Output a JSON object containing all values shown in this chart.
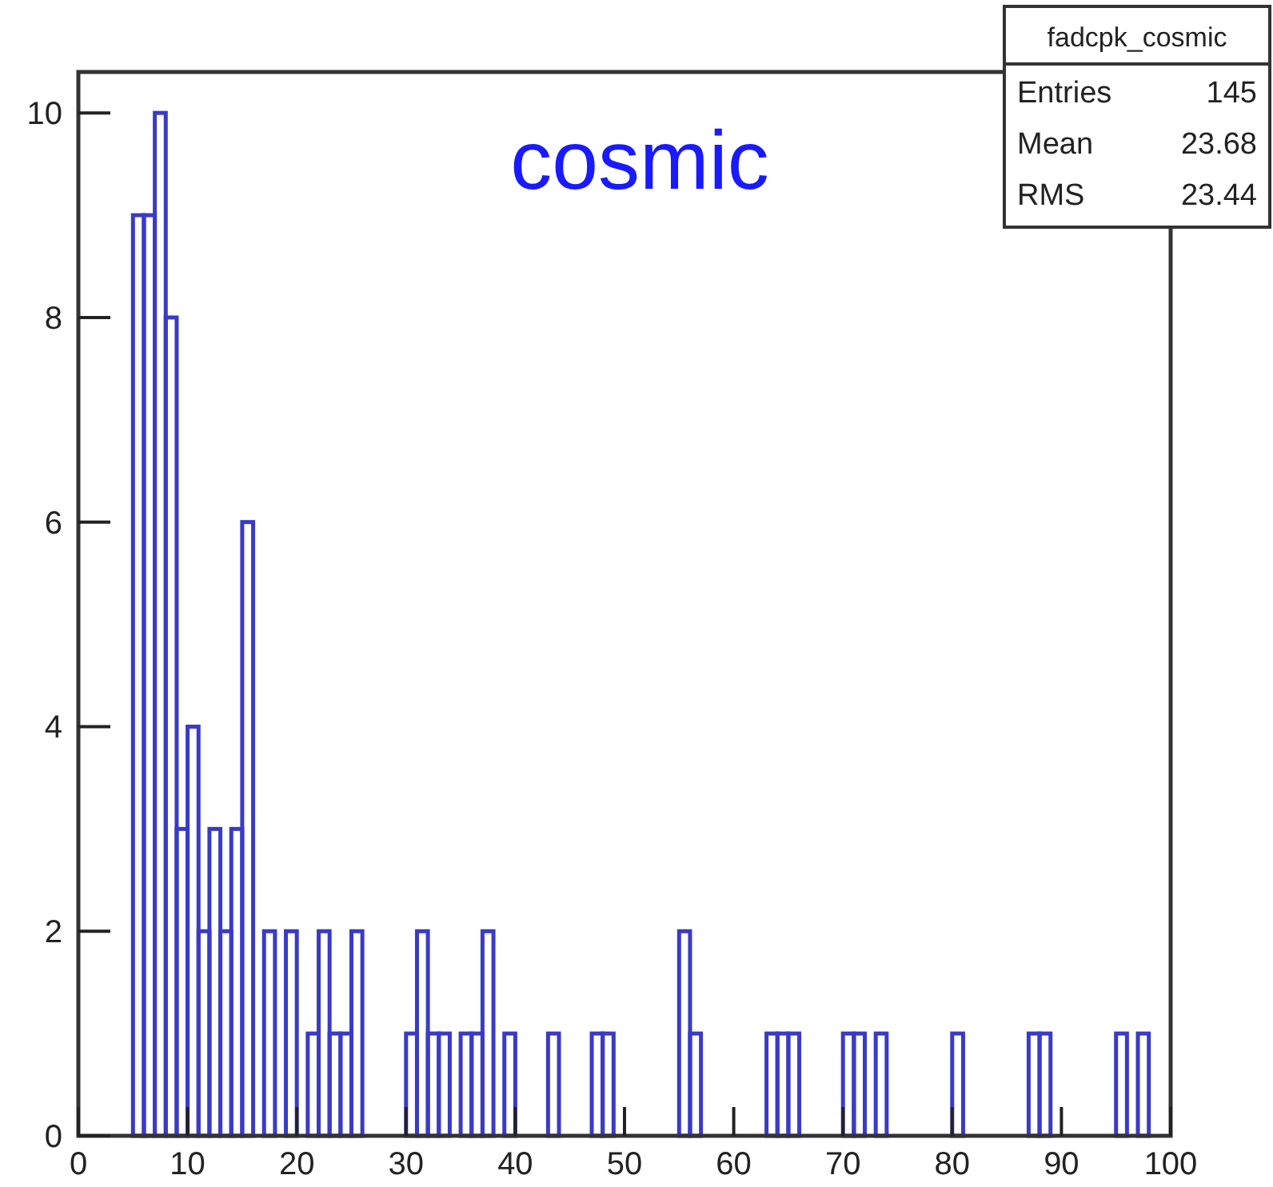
{
  "chart_data": {
    "type": "histogram",
    "title": "cosmic",
    "bins": [
      0,
      1,
      2,
      3,
      4,
      5,
      6,
      7,
      8,
      9,
      10,
      11,
      12,
      13,
      14,
      15,
      16,
      17,
      18,
      19,
      20,
      21,
      22,
      23,
      24,
      25,
      26,
      27,
      28,
      29,
      30,
      31,
      32,
      33,
      34,
      35,
      36,
      37,
      38,
      39,
      40,
      41,
      42,
      43,
      44,
      45,
      46,
      47,
      48,
      49,
      50,
      51,
      52,
      53,
      54,
      55,
      56,
      57,
      58,
      59,
      60,
      61,
      62,
      63,
      64,
      65,
      66,
      67,
      68,
      69,
      70,
      71,
      72,
      73,
      74,
      75,
      76,
      77,
      78,
      79,
      80,
      81,
      82,
      83,
      84,
      85,
      86,
      87,
      88,
      89,
      90,
      91,
      92,
      93,
      94,
      95,
      96,
      97,
      98,
      99,
      100
    ],
    "values": [
      0,
      0,
      0,
      0,
      0,
      9,
      9,
      10,
      8,
      3,
      4,
      2,
      3,
      2,
      3,
      6,
      0,
      2,
      0,
      2,
      0,
      1,
      2,
      1,
      1,
      2,
      0,
      0,
      0,
      0,
      1,
      2,
      1,
      1,
      0,
      1,
      1,
      2,
      0,
      1,
      0,
      0,
      0,
      1,
      0,
      0,
      0,
      1,
      1,
      0,
      0,
      0,
      0,
      0,
      0,
      2,
      1,
      0,
      0,
      0,
      0,
      0,
      0,
      1,
      1,
      1,
      0,
      0,
      0,
      0,
      1,
      1,
      0,
      1,
      0,
      0,
      0,
      0,
      0,
      0,
      1,
      0,
      0,
      0,
      0,
      0,
      0,
      1,
      1,
      0,
      0,
      0,
      0,
      0,
      0,
      1,
      0,
      1,
      0,
      0
    ],
    "color": "#3a3ac8",
    "xlim": [
      0,
      100
    ],
    "xticks": [
      0,
      10,
      20,
      30,
      40,
      50,
      60,
      70,
      80,
      90,
      100
    ],
    "ylim": [
      0,
      10.4
    ],
    "yticks": [
      0,
      2,
      4,
      6,
      8,
      10
    ],
    "annotations": [
      "fadcpk_cosmic",
      "Entries 145",
      "Mean 23.68",
      "RMS 23.44"
    ]
  }
}
